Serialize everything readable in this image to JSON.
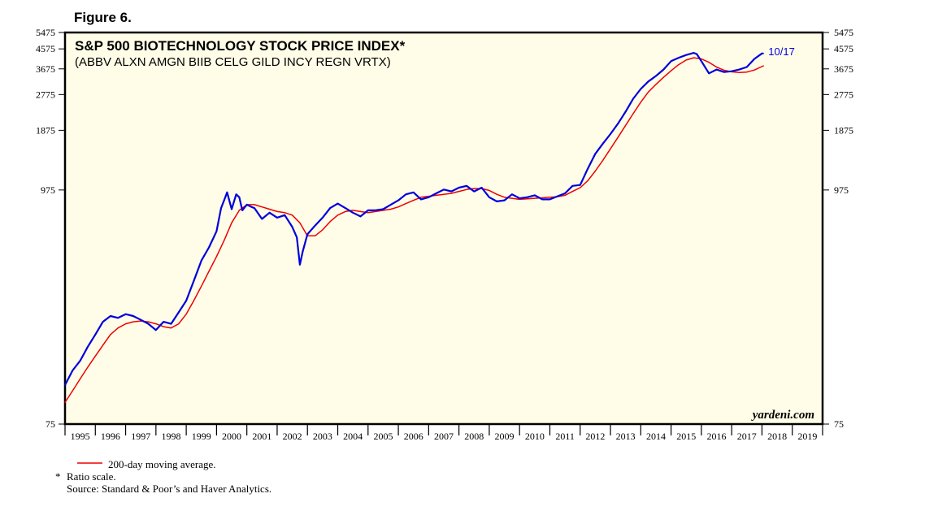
{
  "figure_label": "Figure 6.",
  "chart_data": {
    "type": "line",
    "title": "S&P 500 BIOTECHNOLOGY STOCK PRICE INDEX*",
    "subtitle": "(ABBV ALXN AMGN BIIB CELG GILD INCY REGN VRTX)",
    "scale": "log",
    "ylim": [
      75,
      5475
    ],
    "y_ticks": [
      "75",
      "975",
      "1875",
      "2775",
      "3675",
      "4575",
      "5475"
    ],
    "x_ticks": [
      "1995",
      "1996",
      "1997",
      "1998",
      "1999",
      "2000",
      "2001",
      "2002",
      "2003",
      "2004",
      "2005",
      "2006",
      "2007",
      "2008",
      "2009",
      "2010",
      "2011",
      "2012",
      "2013",
      "2014",
      "2015",
      "2016",
      "2017",
      "2018",
      "2019"
    ],
    "x_range": [
      1994.75,
      2019.75
    ],
    "latest_label": "10/17",
    "watermark": "yardeni.com",
    "series": [
      {
        "name": "S&P 500 Biotechnology Index",
        "color": "#0000dd",
        "x": [
          1994.75,
          1995.0,
          1995.25,
          1995.5,
          1995.75,
          1996.0,
          1996.25,
          1996.5,
          1996.75,
          1997.0,
          1997.25,
          1997.5,
          1997.75,
          1998.0,
          1998.25,
          1998.5,
          1998.75,
          1999.0,
          1999.25,
          1999.5,
          1999.75,
          1999.9,
          2000.0,
          2000.1,
          2000.25,
          2000.4,
          2000.5,
          2000.6,
          2000.75,
          2000.9,
          2001.0,
          2001.25,
          2001.5,
          2001.75,
          2002.0,
          2002.25,
          2002.4,
          2002.5,
          2002.6,
          2002.75,
          2003.0,
          2003.25,
          2003.5,
          2003.75,
          2004.0,
          2004.25,
          2004.5,
          2004.75,
          2005.0,
          2005.25,
          2005.5,
          2005.75,
          2006.0,
          2006.25,
          2006.5,
          2006.75,
          2007.0,
          2007.25,
          2007.5,
          2007.75,
          2008.0,
          2008.25,
          2008.5,
          2008.75,
          2009.0,
          2009.25,
          2009.5,
          2009.75,
          2010.0,
          2010.25,
          2010.5,
          2010.75,
          2011.0,
          2011.25,
          2011.5,
          2011.75,
          2012.0,
          2012.25,
          2012.5,
          2012.75,
          2013.0,
          2013.25,
          2013.5,
          2013.75,
          2014.0,
          2014.25,
          2014.5,
          2014.75,
          2015.0,
          2015.25,
          2015.5,
          2015.6,
          2015.75,
          2016.0,
          2016.25,
          2016.5,
          2016.75,
          2017.0,
          2017.25,
          2017.5,
          2017.75,
          2017.8
        ],
        "values": [
          115,
          135,
          150,
          175,
          200,
          230,
          245,
          240,
          250,
          245,
          235,
          225,
          210,
          230,
          225,
          255,
          290,
          360,
          450,
          520,
          620,
          800,
          870,
          950,
          790,
          930,
          900,
          780,
          830,
          810,
          800,
          710,
          760,
          720,
          740,
          650,
          580,
          430,
          500,
          600,
          660,
          720,
          800,
          840,
          800,
          760,
          730,
          780,
          780,
          790,
          830,
          870,
          930,
          950,
          880,
          900,
          940,
          980,
          960,
          1000,
          1020,
          960,
          1000,
          900,
          860,
          870,
          930,
          890,
          900,
          920,
          880,
          880,
          910,
          940,
          1020,
          1030,
          1230,
          1450,
          1620,
          1800,
          2020,
          2300,
          2650,
          2950,
          3200,
          3400,
          3650,
          4000,
          4150,
          4280,
          4380,
          4320,
          4000,
          3500,
          3650,
          3550,
          3580,
          3650,
          3750,
          4100,
          4350,
          4350
        ]
      },
      {
        "name": "200-day moving average.",
        "color": "#ee0000",
        "x": [
          1994.75,
          1995.0,
          1995.25,
          1995.5,
          1995.75,
          1996.0,
          1996.25,
          1996.5,
          1996.75,
          1997.0,
          1997.25,
          1997.5,
          1997.75,
          1998.0,
          1998.25,
          1998.5,
          1998.75,
          1999.0,
          1999.25,
          1999.5,
          1999.75,
          2000.0,
          2000.25,
          2000.5,
          2000.75,
          2001.0,
          2001.25,
          2001.5,
          2001.75,
          2002.0,
          2002.25,
          2002.5,
          2002.75,
          2003.0,
          2003.25,
          2003.5,
          2003.75,
          2004.0,
          2004.25,
          2004.5,
          2004.75,
          2005.0,
          2005.25,
          2005.5,
          2005.75,
          2006.0,
          2006.25,
          2006.5,
          2006.75,
          2007.0,
          2007.25,
          2007.5,
          2007.75,
          2008.0,
          2008.25,
          2008.5,
          2008.75,
          2009.0,
          2009.25,
          2009.5,
          2009.75,
          2010.0,
          2010.25,
          2010.5,
          2010.75,
          2011.0,
          2011.25,
          2011.5,
          2011.75,
          2012.0,
          2012.25,
          2012.5,
          2012.75,
          2013.0,
          2013.25,
          2013.5,
          2013.75,
          2014.0,
          2014.25,
          2014.5,
          2014.75,
          2015.0,
          2015.25,
          2015.5,
          2015.75,
          2016.0,
          2016.25,
          2016.5,
          2016.75,
          2017.0,
          2017.25,
          2017.5,
          2017.8
        ],
        "values": [
          95,
          108,
          123,
          140,
          158,
          178,
          200,
          215,
          225,
          230,
          232,
          230,
          225,
          218,
          215,
          225,
          250,
          290,
          340,
          400,
          470,
          560,
          680,
          780,
          830,
          830,
          810,
          790,
          770,
          760,
          740,
          680,
          590,
          590,
          630,
          690,
          740,
          770,
          780,
          770,
          760,
          770,
          780,
          790,
          810,
          840,
          870,
          900,
          910,
          920,
          930,
          940,
          960,
          980,
          990,
          990,
          970,
          930,
          900,
          890,
          880,
          885,
          890,
          895,
          900,
          905,
          920,
          960,
          1000,
          1080,
          1200,
          1350,
          1530,
          1740,
          1980,
          2250,
          2550,
          2850,
          3100,
          3350,
          3600,
          3850,
          4050,
          4150,
          4100,
          3950,
          3750,
          3620,
          3560,
          3530,
          3550,
          3630,
          3800
        ]
      }
    ]
  },
  "legend": {
    "label": "200-day moving average.",
    "color": "#ee0000"
  },
  "footnotes": {
    "marker": "*",
    "ratio_text": "Ratio scale.",
    "source": "Source: Standard & Poor’s and Haver Analytics."
  }
}
